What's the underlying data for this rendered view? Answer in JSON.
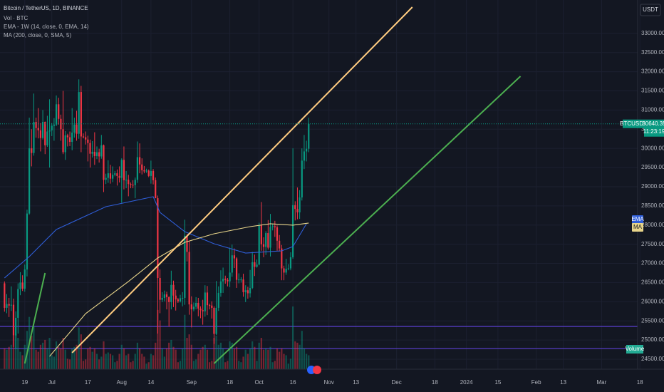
{
  "chart_data": {
    "type": "candlestick",
    "title": "Bitcoin / TetherUS, 1D, BINANCE",
    "indicator_labels": [
      "Vol · BTC",
      "EMA - 1W (14, close, 0, EMA, 14)",
      "MA (200, close, 0, SMA, 5)"
    ],
    "currency": "USDT",
    "symbol": "BTCUSDT",
    "last_price": 30640.35,
    "countdown": "11:23:19",
    "colors": {
      "up": "#089981",
      "down": "#f23645",
      "background": "#131722",
      "grid": "#1c2030",
      "text": "#b2b5be"
    },
    "xlim": [
      -7,
      276
    ],
    "ylim": [
      24240,
      33870
    ],
    "grid": true,
    "xticks": [
      {
        "value": 4,
        "label": "19"
      },
      {
        "value": 16,
        "label": "Jul"
      },
      {
        "value": 32,
        "label": "17"
      },
      {
        "value": 47,
        "label": "Aug"
      },
      {
        "value": 60,
        "label": "14"
      },
      {
        "value": 78,
        "label": "Sep"
      },
      {
        "value": 95,
        "label": "18"
      },
      {
        "value": 108,
        "label": "Oct"
      },
      {
        "value": 123,
        "label": "16"
      },
      {
        "value": 139,
        "label": "Nov"
      },
      {
        "value": 151,
        "label": "13"
      },
      {
        "value": 169,
        "label": "Dec"
      },
      {
        "value": 186,
        "label": "18"
      },
      {
        "value": 200,
        "label": "2024"
      },
      {
        "value": 214,
        "label": "15"
      },
      {
        "value": 231,
        "label": "Feb"
      },
      {
        "value": 243,
        "label": "13"
      },
      {
        "value": 260,
        "label": "Mar"
      },
      {
        "value": 277,
        "label": "18"
      }
    ],
    "yticks": [
      {
        "value": 24500,
        "label": "24500.00"
      },
      {
        "value": 25000,
        "label": "25000.00"
      },
      {
        "value": 25500,
        "label": "25500.00"
      },
      {
        "value": 26000,
        "label": "26000.00"
      },
      {
        "value": 26500,
        "label": "26500.00"
      },
      {
        "value": 27000,
        "label": "27000.00"
      },
      {
        "value": 27500,
        "label": "27500.00"
      },
      {
        "value": 28000,
        "label": "28000.00"
      },
      {
        "value": 28500,
        "label": "28500.00"
      },
      {
        "value": 29000,
        "label": "29000.00"
      },
      {
        "value": 29500,
        "label": "29500.00"
      },
      {
        "value": 30000,
        "label": "30000.00"
      },
      {
        "value": 30500,
        "label": "30500.00"
      },
      {
        "value": 31000,
        "label": "31000.00"
      },
      {
        "value": 31500,
        "label": "31500.00"
      },
      {
        "value": 32000,
        "label": "32000.00"
      },
      {
        "value": 32500,
        "label": "32500.00"
      },
      {
        "value": 33000,
        "label": "33000.00"
      }
    ],
    "x": [
      -5,
      -4,
      -3,
      -2,
      -1,
      0,
      1,
      2,
      3,
      4,
      5,
      6,
      7,
      8,
      9,
      10,
      11,
      12,
      13,
      14,
      15,
      16,
      17,
      18,
      19,
      20,
      21,
      22,
      23,
      24,
      25,
      26,
      27,
      28,
      29,
      30,
      31,
      32,
      33,
      34,
      35,
      36,
      37,
      38,
      39,
      40,
      41,
      42,
      43,
      44,
      45,
      46,
      47,
      48,
      49,
      50,
      51,
      52,
      53,
      54,
      55,
      56,
      57,
      58,
      59,
      60,
      61,
      62,
      63,
      64,
      65,
      66,
      67,
      68,
      69,
      70,
      71,
      72,
      73,
      74,
      75,
      76,
      77,
      78,
      79,
      80,
      81,
      82,
      83,
      84,
      85,
      86,
      87,
      88,
      89,
      90,
      91,
      92,
      93,
      94,
      95,
      96,
      97,
      98,
      99,
      100,
      101,
      102,
      103,
      104,
      105,
      106,
      107,
      108,
      109,
      110,
      111,
      112,
      113,
      114,
      115,
      116,
      117,
      118,
      119,
      120,
      121,
      122,
      123,
      124,
      125,
      126,
      127,
      128,
      129,
      130
    ],
    "ohlc": [
      [
        26480,
        26530,
        25740,
        25840
      ],
      [
        25840,
        26200,
        25700,
        25940
      ],
      [
        25940,
        26100,
        25600,
        25900
      ],
      [
        25900,
        26400,
        25760,
        25920
      ],
      [
        25920,
        26080,
        24820,
        25120
      ],
      [
        25120,
        25750,
        24760,
        25580
      ],
      [
        25580,
        26480,
        25170,
        26330
      ],
      [
        26330,
        26770,
        26170,
        26500
      ],
      [
        26500,
        26690,
        26280,
        26340
      ],
      [
        26340,
        26970,
        26260,
        26840
      ],
      [
        26840,
        28400,
        26660,
        28300
      ],
      [
        28300,
        30800,
        28270,
        30000
      ],
      [
        30000,
        30500,
        29530,
        29880
      ],
      [
        29880,
        31430,
        29810,
        30690
      ],
      [
        30690,
        30800,
        30280,
        30530
      ],
      [
        30530,
        31050,
        30260,
        30470
      ],
      [
        30470,
        30660,
        29920,
        30270
      ],
      [
        30270,
        31000,
        30230,
        30690
      ],
      [
        30690,
        30700,
        29850,
        30080
      ],
      [
        30080,
        30850,
        30040,
        30440
      ],
      [
        30440,
        31280,
        29500,
        30470
      ],
      [
        30470,
        30660,
        30320,
        30590
      ],
      [
        30590,
        30790,
        30200,
        30620
      ],
      [
        30620,
        31380,
        30580,
        31150
      ],
      [
        31150,
        31320,
        30620,
        30770
      ],
      [
        30770,
        30880,
        30200,
        30500
      ],
      [
        30500,
        31500,
        29850,
        29900
      ],
      [
        29900,
        30450,
        29700,
        30340
      ],
      [
        30340,
        30380,
        30050,
        30290
      ],
      [
        30290,
        30440,
        30060,
        30170
      ],
      [
        30170,
        31050,
        29950,
        30410
      ],
      [
        30410,
        30800,
        30280,
        30620
      ],
      [
        30620,
        30980,
        30200,
        30380
      ],
      [
        30380,
        31800,
        30250,
        31470
      ],
      [
        31470,
        31630,
        29900,
        30310
      ],
      [
        30310,
        30390,
        30260,
        30290
      ],
      [
        30290,
        30440,
        30100,
        30230
      ],
      [
        30230,
        30330,
        29660,
        30140
      ],
      [
        30140,
        30230,
        29500,
        29860
      ],
      [
        29860,
        30190,
        29760,
        29910
      ],
      [
        29910,
        30420,
        29570,
        29800
      ],
      [
        29800,
        30050,
        29720,
        29900
      ],
      [
        29900,
        29990,
        29630,
        29790
      ],
      [
        29790,
        30350,
        29730,
        30080
      ],
      [
        30080,
        30100,
        28860,
        29180
      ],
      [
        29180,
        29340,
        29070,
        29230
      ],
      [
        29230,
        29690,
        29100,
        29350
      ],
      [
        29350,
        29570,
        29080,
        29210
      ],
      [
        29210,
        29530,
        29120,
        29310
      ],
      [
        29310,
        29410,
        29270,
        29350
      ],
      [
        29350,
        29450,
        29030,
        29280
      ],
      [
        29280,
        29530,
        29110,
        29230
      ],
      [
        29230,
        29740,
        28580,
        29700
      ],
      [
        29700,
        30050,
        28930,
        29170
      ],
      [
        29170,
        29410,
        28960,
        29180
      ],
      [
        29180,
        29310,
        28750,
        29070
      ],
      [
        29070,
        29110,
        28960,
        29050
      ],
      [
        29050,
        29170,
        28960,
        29040
      ],
      [
        29040,
        29240,
        28700,
        29180
      ],
      [
        29180,
        30180,
        29100,
        29770
      ],
      [
        29770,
        30130,
        29350,
        29580
      ],
      [
        29580,
        29740,
        29320,
        29430
      ],
      [
        29430,
        29540,
        29350,
        29400
      ],
      [
        29400,
        29470,
        29360,
        29420
      ],
      [
        29420,
        29450,
        29250,
        29280
      ],
      [
        29280,
        29680,
        29080,
        29410
      ],
      [
        29410,
        29460,
        29060,
        29170
      ],
      [
        29170,
        29240,
        28700,
        28700
      ],
      [
        28700,
        28770,
        25170,
        26620
      ],
      [
        26620,
        26840,
        25700,
        26050
      ],
      [
        26050,
        26250,
        25990,
        26100
      ],
      [
        26100,
        26290,
        26010,
        26190
      ],
      [
        26190,
        26260,
        25800,
        26120
      ],
      [
        26120,
        26140,
        25350,
        25990
      ],
      [
        25990,
        26810,
        25800,
        26440
      ],
      [
        26440,
        26550,
        25860,
        26160
      ],
      [
        26160,
        26310,
        25770,
        26060
      ],
      [
        26060,
        26100,
        25970,
        26010
      ],
      [
        26010,
        26180,
        25980,
        26090
      ],
      [
        26090,
        26250,
        25880,
        26100
      ],
      [
        26100,
        28140,
        25920,
        27720
      ],
      [
        27720,
        27760,
        27050,
        27300
      ],
      [
        27300,
        27580,
        25660,
        25930
      ],
      [
        25930,
        26140,
        25330,
        25800
      ],
      [
        25800,
        25980,
        25750,
        25870
      ],
      [
        25870,
        26120,
        25800,
        25970
      ],
      [
        25970,
        26100,
        25620,
        25820
      ],
      [
        25820,
        25880,
        25570,
        25780
      ],
      [
        25780,
        26050,
        25400,
        25750
      ],
      [
        25750,
        26430,
        25610,
        26240
      ],
      [
        26240,
        26410,
        25650,
        25910
      ],
      [
        25910,
        25950,
        25800,
        25900
      ],
      [
        25900,
        26010,
        25560,
        25840
      ],
      [
        25840,
        25880,
        24900,
        25160
      ],
      [
        25160,
        26540,
        25130,
        25840
      ],
      [
        25840,
        26400,
        25760,
        26230
      ],
      [
        26230,
        26820,
        26130,
        26530
      ],
      [
        26530,
        26890,
        26230,
        26600
      ],
      [
        26600,
        26680,
        26470,
        26570
      ],
      [
        26570,
        26620,
        26400,
        26530
      ],
      [
        26530,
        27410,
        26380,
        26760
      ],
      [
        26760,
        27490,
        26650,
        27210
      ],
      [
        27210,
        27390,
        26880,
        27130
      ],
      [
        27130,
        27160,
        26360,
        26570
      ],
      [
        26570,
        26740,
        26480,
        26580
      ],
      [
        26580,
        26640,
        26500,
        26580
      ],
      [
        26580,
        26730,
        26130,
        26250
      ],
      [
        26250,
        26430,
        25990,
        26300
      ],
      [
        26300,
        26390,
        26080,
        26220
      ],
      [
        26220,
        26830,
        26110,
        26360
      ],
      [
        26360,
        27300,
        26330,
        27030
      ],
      [
        27030,
        27230,
        26670,
        26910
      ],
      [
        26910,
        27100,
        26890,
        26970
      ],
      [
        26970,
        28060,
        26950,
        27990
      ],
      [
        27990,
        28600,
        27330,
        27500
      ],
      [
        27500,
        27680,
        27160,
        27430
      ],
      [
        27430,
        27840,
        27220,
        27790
      ],
      [
        27790,
        28130,
        27360,
        27410
      ],
      [
        27410,
        28290,
        27180,
        27950
      ],
      [
        27950,
        28030,
        27860,
        27970
      ],
      [
        27970,
        28110,
        27690,
        27940
      ],
      [
        27940,
        27990,
        27330,
        27590
      ],
      [
        27590,
        27740,
        27310,
        27390
      ],
      [
        27390,
        27480,
        26560,
        26870
      ],
      [
        26870,
        26940,
        26560,
        26760
      ],
      [
        26760,
        27120,
        26700,
        26860
      ],
      [
        26860,
        26980,
        26820,
        26870
      ],
      [
        26870,
        27290,
        26820,
        27160
      ],
      [
        27160,
        30000,
        27120,
        28520
      ],
      [
        28520,
        28620,
        28120,
        28420
      ],
      [
        28420,
        28980,
        28150,
        28330
      ],
      [
        28330,
        28910,
        28160,
        28720
      ],
      [
        28720,
        30000,
        28640,
        29680
      ],
      [
        29680,
        30350,
        29460,
        29920
      ],
      [
        29920,
        30200,
        29660,
        29990
      ],
      [
        29990,
        30800,
        29900,
        30640.35
      ]
    ],
    "volume": [
      30,
      28,
      32,
      35,
      48,
      50,
      45,
      25,
      20,
      35,
      55,
      75,
      48,
      62,
      28,
      25,
      35,
      38,
      42,
      30,
      45,
      20,
      18,
      40,
      32,
      30,
      45,
      28,
      15,
      14,
      30,
      32,
      35,
      60,
      50,
      12,
      14,
      30,
      32,
      25,
      30,
      22,
      14,
      18,
      40,
      22,
      24,
      22,
      20,
      10,
      12,
      22,
      35,
      30,
      20,
      22,
      10,
      12,
      22,
      38,
      30,
      22,
      18,
      8,
      10,
      22,
      20,
      38,
      85,
      70,
      30,
      18,
      30,
      38,
      42,
      32,
      28,
      10,
      12,
      30,
      78,
      45,
      50,
      35,
      12,
      14,
      22,
      28,
      32,
      35,
      28,
      10,
      12,
      45,
      48,
      35,
      38,
      30,
      10,
      12,
      40,
      38,
      30,
      32,
      12,
      10,
      18,
      28,
      22,
      30,
      40,
      32,
      12,
      38,
      45,
      28,
      30,
      28,
      32,
      10,
      12,
      30,
      25,
      30,
      22,
      20,
      8,
      15,
      90,
      40,
      38,
      35,
      55,
      30,
      22,
      20
    ],
    "volume_name": "Volume",
    "series": [
      {
        "name": "EMA",
        "color": "#2f5ed8",
        "x": [
          -5,
          6,
          18,
          40,
          61,
          64,
          75,
          88,
          102,
          118,
          123,
          129
        ],
        "values": [
          26620,
          27177,
          27884,
          28479,
          28739,
          28330,
          27828,
          27512,
          27270,
          27326,
          27438,
          28033
        ]
      },
      {
        "name": "MA",
        "color": "#e8d58a",
        "x": [
          15,
          31,
          50,
          63,
          75,
          88,
          104,
          113,
          123,
          130
        ],
        "values": [
          24575,
          25690,
          26527,
          27140,
          27549,
          27772,
          27958,
          28033,
          27996,
          28052
        ]
      }
    ],
    "drawings": [
      {
        "color": "#ffcc80",
        "x": [
          25,
          176
        ],
        "values": [
          24668,
          33684
        ]
      },
      {
        "color": "#4caf50",
        "x": [
          88,
          224
        ],
        "values": [
          24389,
          31881
        ]
      },
      {
        "color": "#4caf50",
        "x": [
          4,
          13
        ],
        "values": [
          24389,
          26750
        ]
      }
    ],
    "hlines": [
      {
        "value": 25355,
        "color": "#5b3fd1"
      },
      {
        "value": 24780,
        "color": "#5b3fd1"
      }
    ]
  }
}
